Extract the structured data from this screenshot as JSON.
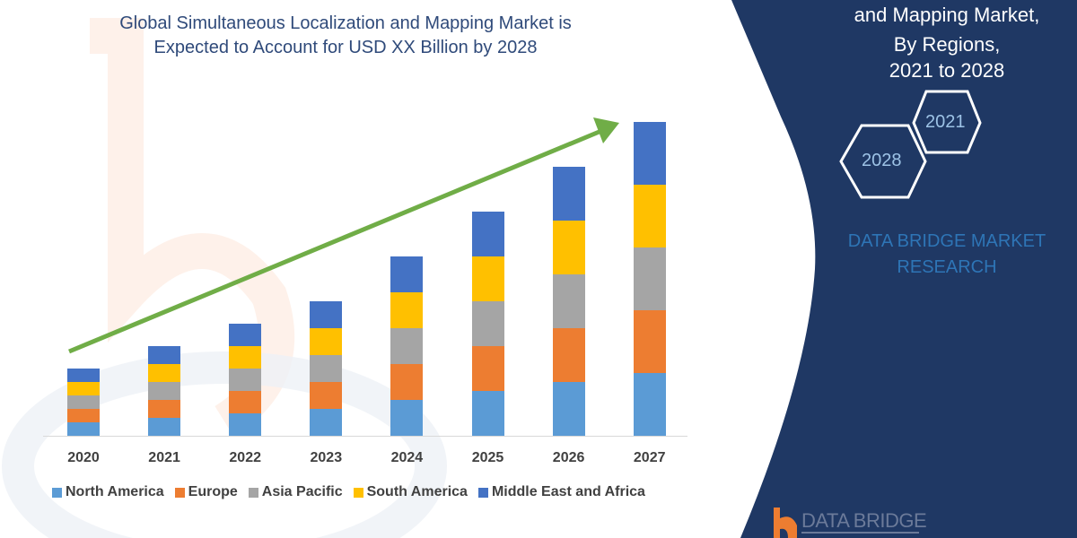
{
  "title": {
    "line1": "Global Simultaneous Localization and Mapping Market is",
    "line2": "Expected to Account for USD XX Billion by 2028"
  },
  "side_panel": {
    "line1": "and Mapping Market,",
    "line2": "By Regions,",
    "line3": "2021 to 2028",
    "hex_small": "2021",
    "hex_large": "2028",
    "brand_line1": "DATA BRIDGE MARKET",
    "brand_line2": "RESEARCH",
    "logo_text": "DATA BRIDGE"
  },
  "colors": {
    "north_america": "#5b9bd5",
    "europe": "#ed7d31",
    "asia_pacific": "#a5a5a5",
    "south_america": "#ffc000",
    "middle_east_africa": "#4472c4",
    "trend_arrow": "#70ad47",
    "panel": "#1f3864"
  },
  "chart_data": {
    "type": "bar",
    "stacked": true,
    "title": "Global Simultaneous Localization and Mapping Market is Expected to Account for USD XX Billion by 2028",
    "xlabel": "",
    "ylabel": "",
    "grid": false,
    "legend_position": "bottom",
    "categories": [
      "2020",
      "2021",
      "2022",
      "2023",
      "2024",
      "2025",
      "2026",
      "2027"
    ],
    "series": [
      {
        "name": "North America",
        "values": [
          15,
          20,
          25,
          30,
          40,
          50,
          60,
          70
        ]
      },
      {
        "name": "Europe",
        "values": [
          15,
          20,
          25,
          30,
          40,
          50,
          60,
          70
        ]
      },
      {
        "name": "Asia Pacific",
        "values": [
          15,
          20,
          25,
          30,
          40,
          50,
          60,
          70
        ]
      },
      {
        "name": "South America",
        "values": [
          15,
          20,
          25,
          30,
          40,
          50,
          60,
          70
        ]
      },
      {
        "name": "Middle East and Africa",
        "values": [
          15,
          20,
          25,
          30,
          40,
          50,
          60,
          70
        ]
      }
    ],
    "annotations": [
      "upward green trend arrow from 2020 to 2027"
    ],
    "units": "relative (no y-axis shown)"
  }
}
